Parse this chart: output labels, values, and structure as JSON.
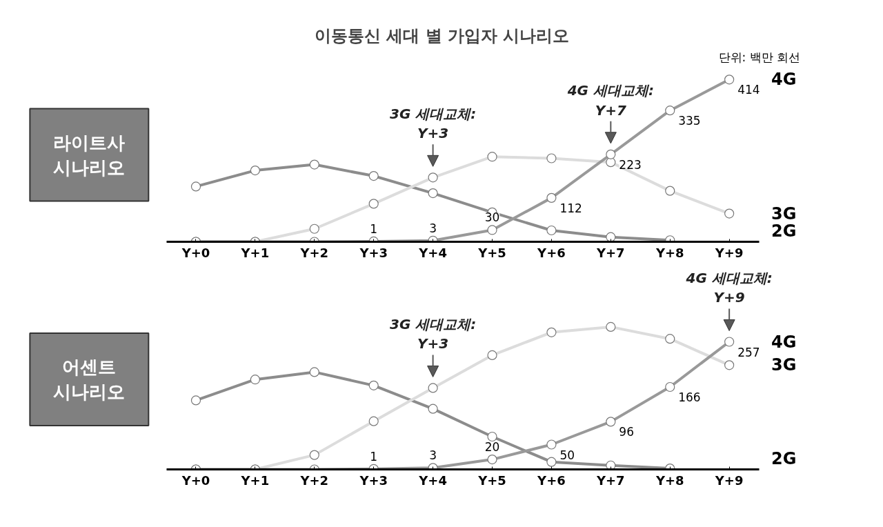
{
  "chart_data": [
    {
      "type": "line",
      "title": "이동통신 세대 별 가입자 시나리오",
      "subtitle": "라이트사\n시나리오",
      "categories": [
        "Y+0",
        "Y+1",
        "Y+2",
        "Y+3",
        "Y+4",
        "Y+5",
        "Y+6",
        "Y+7",
        "Y+8",
        "Y+9"
      ],
      "series": [
        {
          "name": "2G",
          "color": "#8c8c8c",
          "values": [
            141,
            182,
            197,
            168,
            124,
            75,
            29,
            12,
            4,
            null
          ]
        },
        {
          "name": "3G",
          "color": "#dcdcdc",
          "values": [
            0,
            0,
            33,
            97,
            164,
            217,
            213,
            203,
            130,
            72
          ]
        },
        {
          "name": "4G",
          "color": "#999999",
          "values": [
            0,
            0,
            0,
            1,
            3,
            30,
            112,
            223,
            335,
            414
          ],
          "value_labels": [
            null,
            null,
            null,
            "1",
            "3",
            "30",
            "112",
            "223",
            "335",
            "414"
          ]
        }
      ],
      "tick_labels": "x",
      "grid": false,
      "marker": "circle",
      "line_style": "solid",
      "annotations": [
        "단위: 백만 회선",
        {
          "text": "3G 세대교체:\nY+3",
          "x": "Y+4",
          "y": 164
        },
        {
          "text": "4G 세대교체:\nY+7",
          "x": "Y+7",
          "y": 223
        }
      ]
    },
    {
      "type": "line",
      "subtitle": "어센트\n시나리오",
      "categories": [
        "Y+0",
        "Y+1",
        "Y+2",
        "Y+3",
        "Y+4",
        "Y+5",
        "Y+6",
        "Y+7",
        "Y+8",
        "Y+9"
      ],
      "series": [
        {
          "name": "2G",
          "color": "#8c8c8c",
          "values": [
            139,
            181,
            196,
            169,
            122,
            66,
            15,
            8,
            2,
            null
          ]
        },
        {
          "name": "3G",
          "color": "#dcdcdc",
          "values": [
            0,
            0,
            29,
            97,
            164,
            230,
            276,
            287,
            263,
            210
          ]
        },
        {
          "name": "4G",
          "color": "#999999",
          "values": [
            0,
            0,
            0,
            1,
            3,
            20,
            50,
            96,
            166,
            257
          ],
          "value_labels": [
            null,
            null,
            null,
            "1",
            "3",
            "20",
            "50",
            "96",
            "166",
            "257"
          ]
        }
      ],
      "tick_labels": "x",
      "grid": false,
      "marker": "circle",
      "line_style": "solid",
      "annotations": [
        {
          "text": "3G 세대교체:\nY+3",
          "x": "Y+4",
          "y": 164
        },
        {
          "text": "4G 세대교체:\nY+9",
          "x": "Y+9",
          "y": 257
        }
      ]
    }
  ]
}
